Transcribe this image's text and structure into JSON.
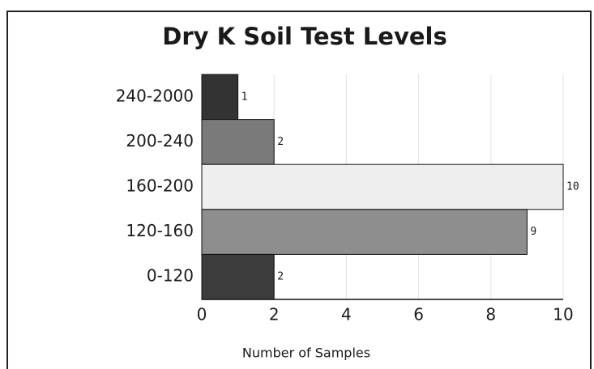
{
  "chart_data": {
    "type": "bar",
    "orientation": "horizontal",
    "title": "Dry K Soil Test Levels",
    "xlabel": "Number of Samples",
    "categories": [
      "240-2000",
      "200-240",
      "160-200",
      "120-160",
      "0-120"
    ],
    "values": [
      1,
      2,
      10,
      9,
      2
    ],
    "colors": [
      "#333333",
      "#7a7a7a",
      "#eeeeee",
      "#8e8e8e",
      "#3c3c3c"
    ],
    "xlim": [
      0,
      10
    ],
    "xticks": [
      0,
      2,
      4,
      6,
      8,
      10
    ],
    "grid": true
  }
}
